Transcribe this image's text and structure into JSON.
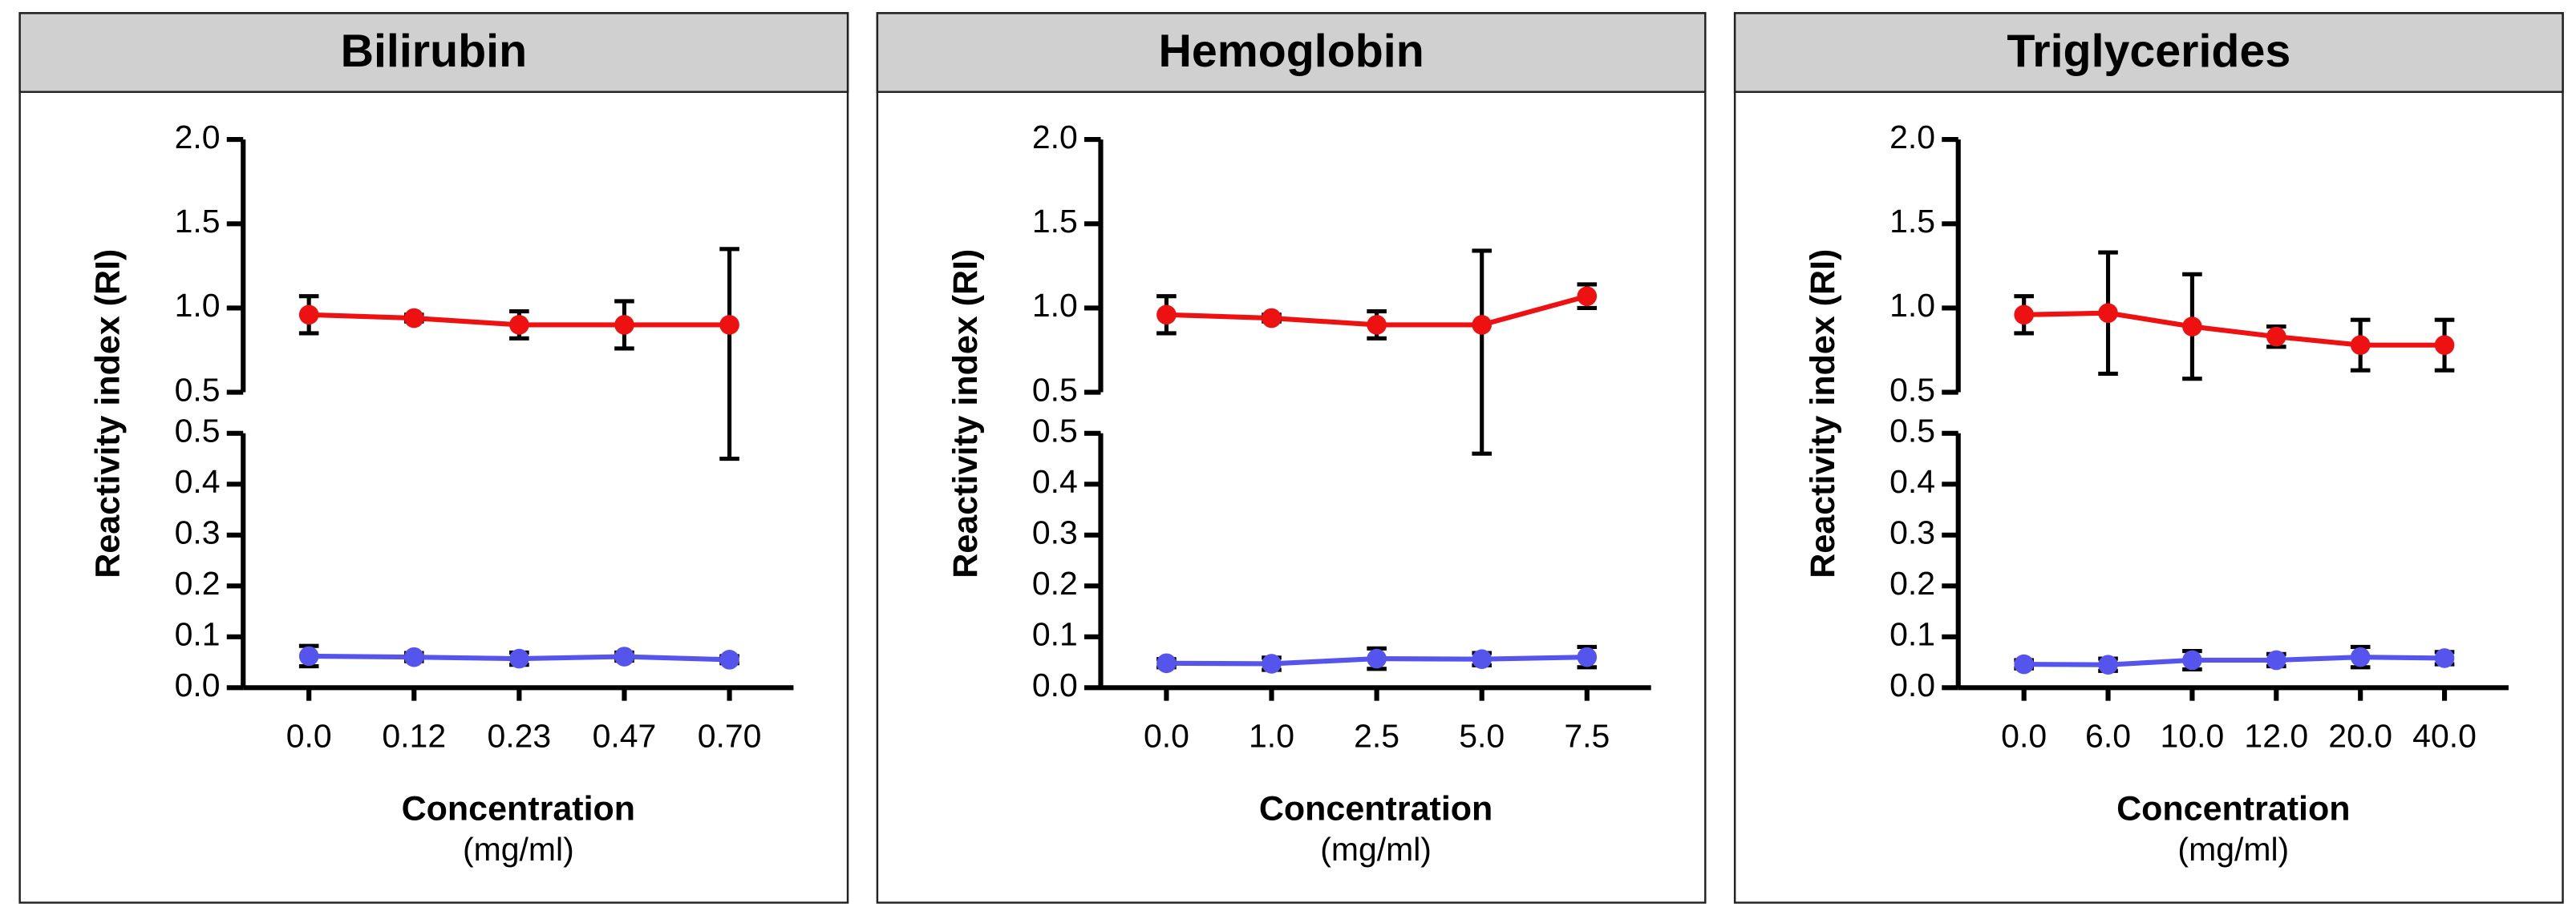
{
  "chart_data": [
    {
      "type": "line",
      "title": "Bilirubin",
      "categories": [
        "0.0",
        "0.12",
        "0.23",
        "0.47",
        "0.70"
      ],
      "x_label": "Concentration",
      "x_unit": "(mg/ml)",
      "y_label": "Reactivity index (RI)",
      "ylim_lower": [
        0,
        0.5
      ],
      "yticks_lower": [
        {
          "value": 0,
          "label": "0.0"
        },
        {
          "value": 0.1,
          "label": "0.1"
        },
        {
          "value": 0.2,
          "label": "0.2"
        },
        {
          "value": 0.3,
          "label": "0.3"
        },
        {
          "value": 0.4,
          "label": "0.4"
        },
        {
          "value": 0.5,
          "label": "0.5"
        }
      ],
      "ylim_upper": [
        0.5,
        2
      ],
      "yticks_upper": [
        {
          "value": 0.5,
          "label": "0.5"
        },
        {
          "value": 1,
          "label": "1.0"
        },
        {
          "value": 1.5,
          "label": "1.5"
        },
        {
          "value": 2,
          "label": "2.0"
        }
      ],
      "series": [
        {
          "color": "#ee1111",
          "values": [
            0.96,
            0.94,
            0.9,
            0.9,
            0.9
          ],
          "errors": [
            0.11,
            0.02,
            0.08,
            0.14,
            0.45
          ]
        },
        {
          "color": "#5555ee",
          "values": [
            0.062,
            0.06,
            0.057,
            0.061,
            0.055
          ],
          "errors": [
            0.02,
            0.008,
            0.012,
            0.008,
            0.007
          ]
        }
      ]
    },
    {
      "type": "line",
      "title": "Hemoglobin",
      "categories": [
        "0.0",
        "1.0",
        "2.5",
        "5.0",
        "7.5"
      ],
      "x_label": "Concentration",
      "x_unit": "(mg/ml)",
      "y_label": "Reactivity index (RI)",
      "ylim_lower": [
        0,
        0.5
      ],
      "yticks_lower": [
        {
          "value": 0,
          "label": "0.0"
        },
        {
          "value": 0.1,
          "label": "0.1"
        },
        {
          "value": 0.2,
          "label": "0.2"
        },
        {
          "value": 0.3,
          "label": "0.3"
        },
        {
          "value": 0.4,
          "label": "0.4"
        },
        {
          "value": 0.5,
          "label": "0.5"
        }
      ],
      "ylim_upper": [
        0.5,
        2
      ],
      "yticks_upper": [
        {
          "value": 0.5,
          "label": "0.5"
        },
        {
          "value": 1,
          "label": "1.0"
        },
        {
          "value": 1.5,
          "label": "1.5"
        },
        {
          "value": 2,
          "label": "2.0"
        }
      ],
      "series": [
        {
          "color": "#ee1111",
          "values": [
            0.96,
            0.94,
            0.9,
            0.9,
            1.07
          ],
          "errors": [
            0.11,
            0.02,
            0.08,
            0.44,
            0.07
          ]
        },
        {
          "color": "#5555ee",
          "values": [
            0.048,
            0.047,
            0.057,
            0.056,
            0.06
          ],
          "errors": [
            0.008,
            0.012,
            0.02,
            0.012,
            0.02
          ]
        }
      ]
    },
    {
      "type": "line",
      "title": "Triglycerides",
      "categories": [
        "0.0",
        "6.0",
        "10.0",
        "12.0",
        "20.0",
        "40.0"
      ],
      "x_label": "Concentration",
      "x_unit": "(mg/ml)",
      "y_label": "Reactivity index (RI)",
      "ylim_lower": [
        0,
        0.5
      ],
      "yticks_lower": [
        {
          "value": 0,
          "label": "0.0"
        },
        {
          "value": 0.1,
          "label": "0.1"
        },
        {
          "value": 0.2,
          "label": "0.2"
        },
        {
          "value": 0.3,
          "label": "0.3"
        },
        {
          "value": 0.4,
          "label": "0.4"
        },
        {
          "value": 0.5,
          "label": "0.5"
        }
      ],
      "ylim_upper": [
        0.5,
        2
      ],
      "yticks_upper": [
        {
          "value": 0.5,
          "label": "0.5"
        },
        {
          "value": 1,
          "label": "1.0"
        },
        {
          "value": 1.5,
          "label": "1.5"
        },
        {
          "value": 2,
          "label": "2.0"
        }
      ],
      "series": [
        {
          "color": "#ee1111",
          "values": [
            0.96,
            0.97,
            0.89,
            0.83,
            0.78,
            0.78
          ],
          "errors": [
            0.11,
            0.36,
            0.31,
            0.06,
            0.15,
            0.15
          ]
        },
        {
          "color": "#5555ee",
          "values": [
            0.046,
            0.045,
            0.054,
            0.054,
            0.06,
            0.058
          ],
          "errors": [
            0.008,
            0.012,
            0.018,
            0.012,
            0.02,
            0.012
          ]
        }
      ]
    }
  ]
}
